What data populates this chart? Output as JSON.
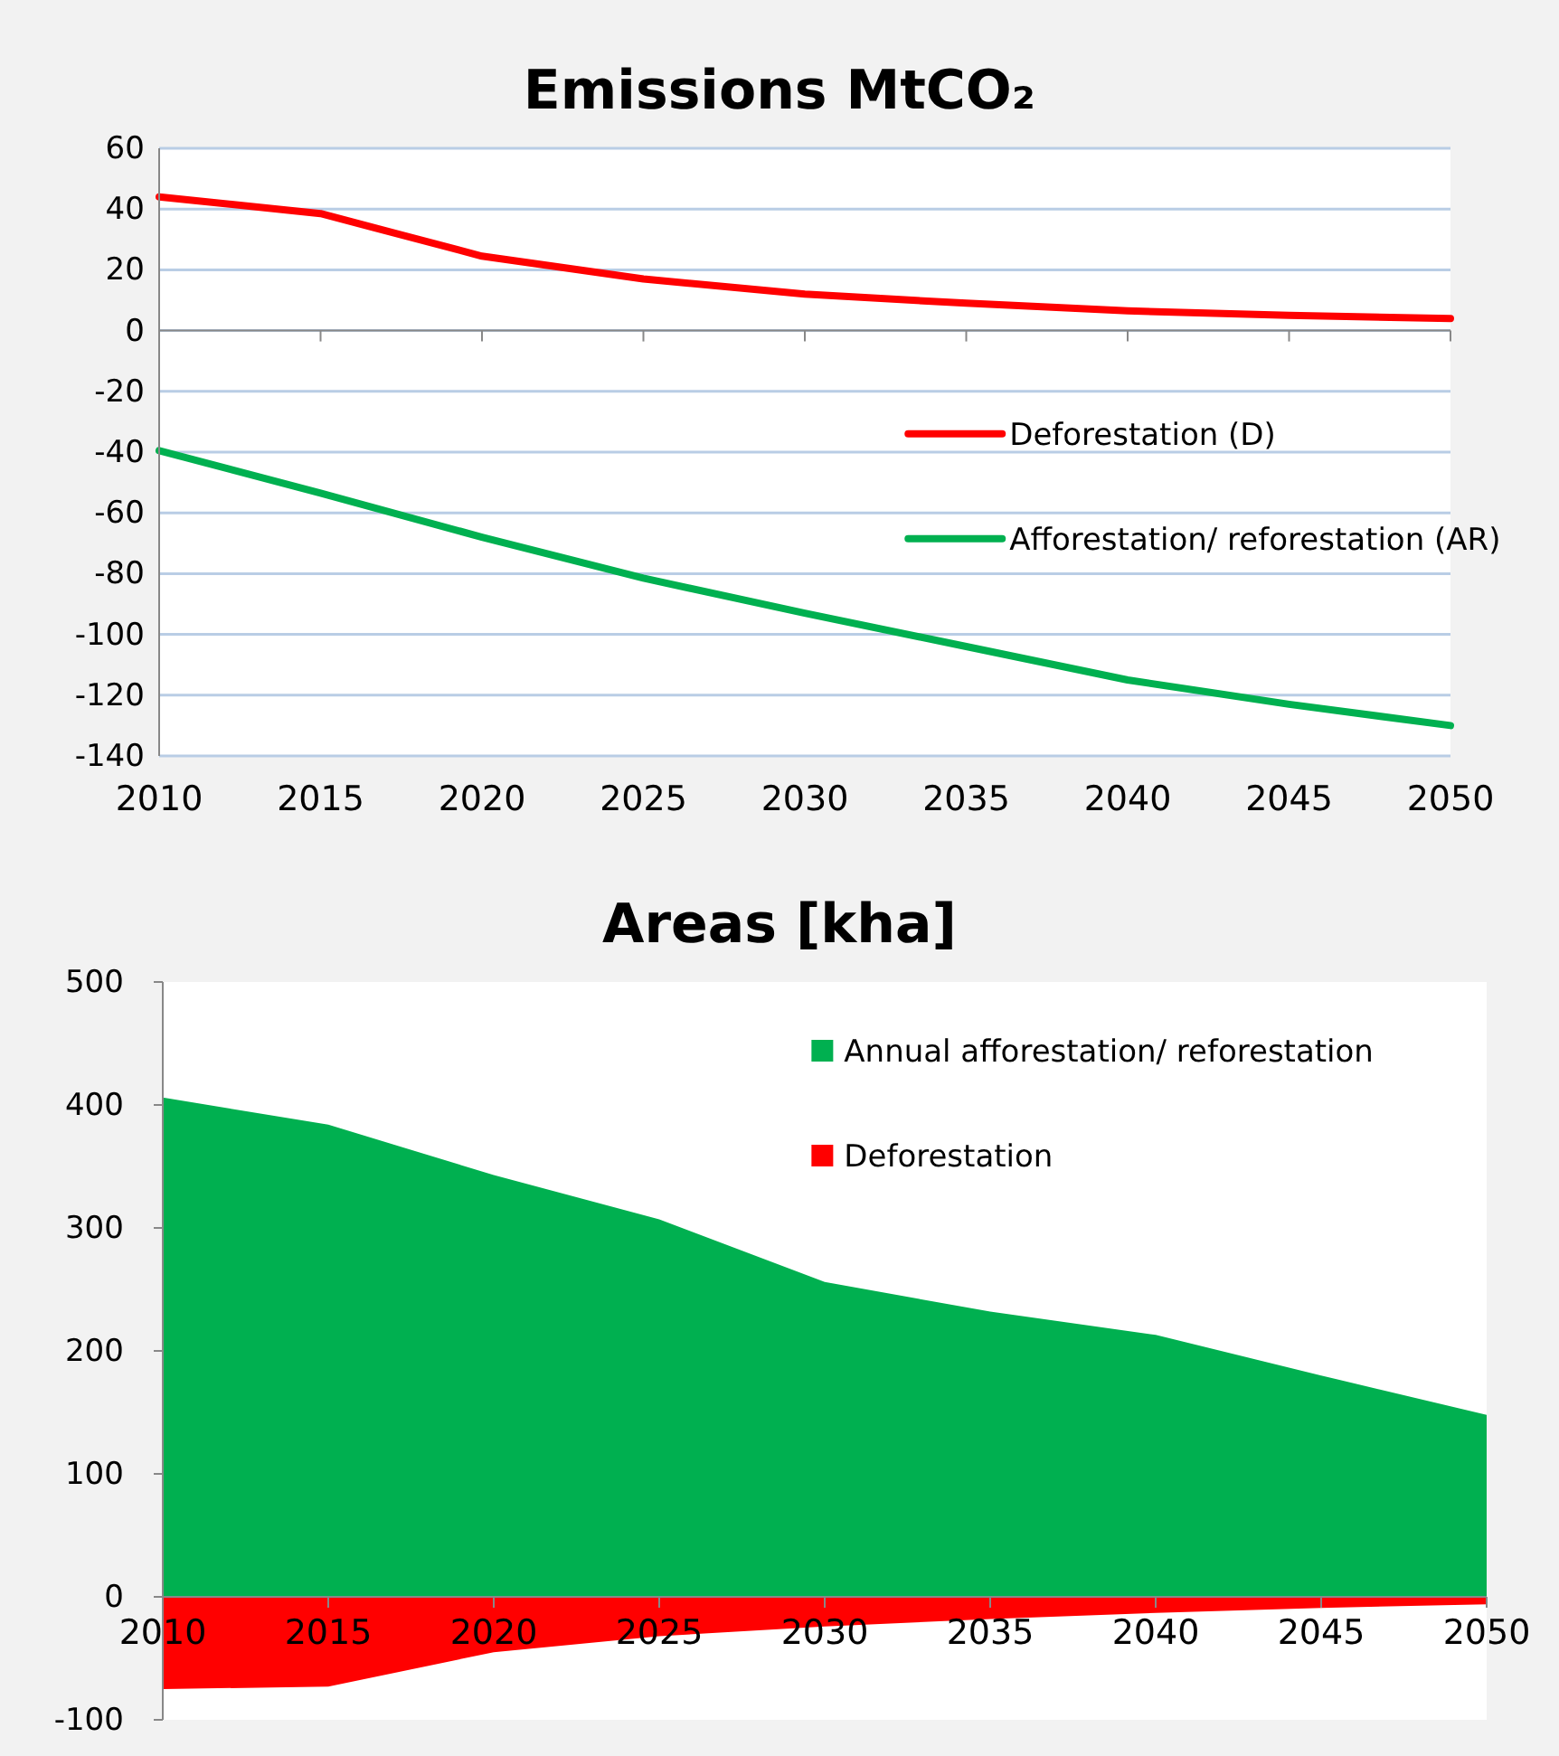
{
  "chart_data": [
    {
      "type": "line",
      "title": "Emissions MtCO₂",
      "x": [
        2010,
        2015,
        2020,
        2025,
        2030,
        2035,
        2040,
        2045,
        2050
      ],
      "xlim": [
        2010,
        2050
      ],
      "xticks": [
        2010,
        2015,
        2020,
        2025,
        2030,
        2035,
        2040,
        2045,
        2050
      ],
      "ylim": [
        -140,
        60
      ],
      "yticks": [
        -140,
        -120,
        -100,
        -80,
        -60,
        -40,
        -20,
        0,
        20,
        40,
        60
      ],
      "grid": "y",
      "legend": "right",
      "series": [
        {
          "name": "Deforestation (D)",
          "color": "#ff0000",
          "values": [
            44,
            38.5,
            24.5,
            17,
            12,
            9,
            6.5,
            5,
            4
          ]
        },
        {
          "name": "Afforestation/ reforestation (AR)",
          "color": "#00b050",
          "values": [
            -39.5,
            -53.5,
            -68,
            -81.5,
            -93,
            -104,
            -115,
            -123,
            -130
          ]
        }
      ]
    },
    {
      "type": "area",
      "title": "Areas [kha]",
      "x": [
        2010,
        2015,
        2020,
        2025,
        2030,
        2035,
        2040,
        2045,
        2050
      ],
      "xlim": [
        2010,
        2050
      ],
      "xticks": [
        2010,
        2015,
        2020,
        2025,
        2030,
        2035,
        2040,
        2045,
        2050
      ],
      "ylim": [
        -100,
        500
      ],
      "yticks": [
        -100,
        0,
        100,
        200,
        300,
        400,
        500
      ],
      "legend": "top right",
      "series": [
        {
          "name": "Annual afforestation/ reforestation",
          "color": "#00b050",
          "values": [
            406,
            384,
            343,
            307,
            256,
            232,
            213,
            180,
            148
          ]
        },
        {
          "name": "Deforestation",
          "color": "#ff0000",
          "values": [
            -75,
            -73,
            -45,
            -32,
            -24,
            -18,
            -13,
            -9,
            -6
          ]
        }
      ]
    }
  ]
}
